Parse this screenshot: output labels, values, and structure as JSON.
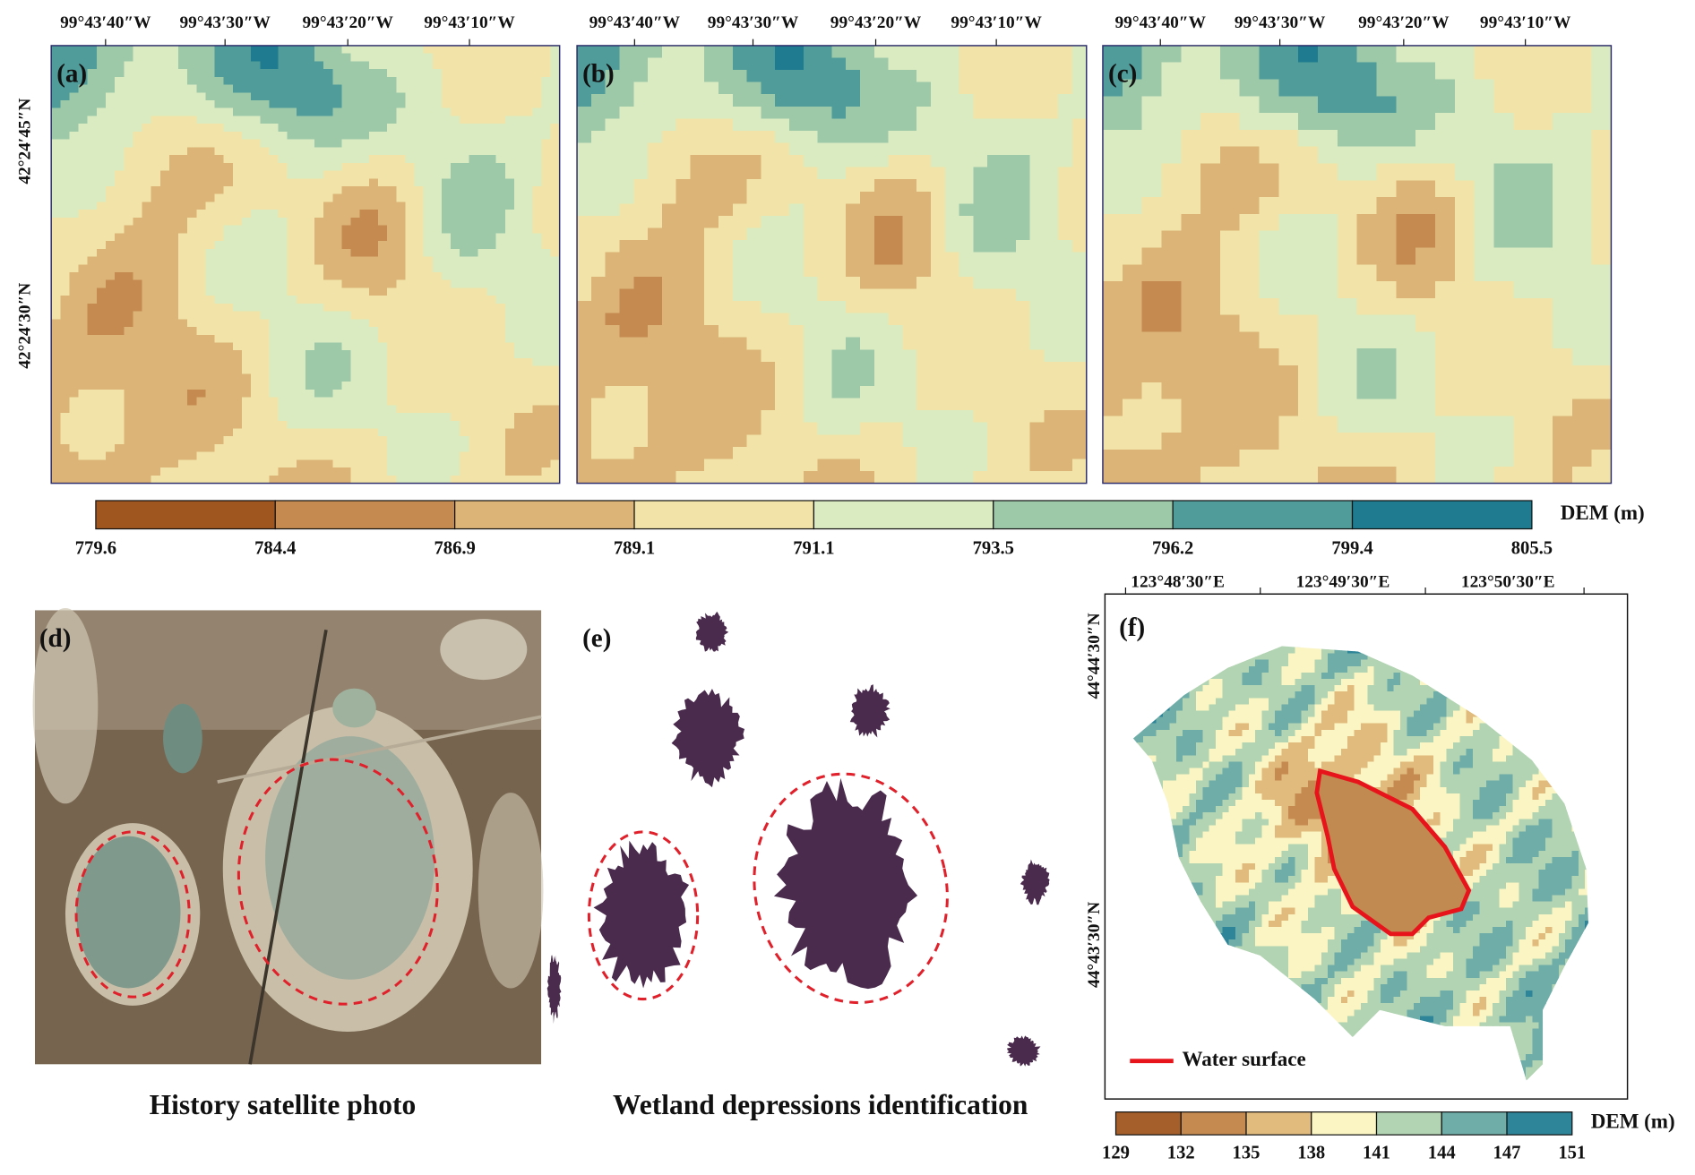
{
  "panels": [
    {
      "label": "(a)"
    },
    {
      "label": "(b)"
    },
    {
      "label": "(c)"
    },
    {
      "label": "(d)",
      "caption": "History satellite photo"
    },
    {
      "label": "(e)",
      "caption": "Wetland depressions identification"
    },
    {
      "label": "(f)",
      "legend": "Water surface"
    }
  ],
  "top_maps": {
    "lon_labels": [
      "99°43′40″W",
      "99°43′30″W",
      "99°43′20″W",
      "99°43′10″W"
    ],
    "lat_labels": [
      "42°24′45″N",
      "42°24′30″N"
    ],
    "colorbar": {
      "title": "DEM (m)",
      "ticks": [
        "779.6",
        "784.4",
        "786.9",
        "789.1",
        "791.1",
        "793.5",
        "796.2",
        "799.4",
        "805.5"
      ],
      "colors": [
        "#a0561f",
        "#c58a4f",
        "#dcb477",
        "#f2e4a8",
        "#dbebc1",
        "#9ec9a9",
        "#4f9c9a",
        "#1f7b8f"
      ]
    }
  },
  "panel_f": {
    "lon_labels": [
      "123°48′30″E",
      "123°49′30″E",
      "123°50′30″E"
    ],
    "lat_labels": [
      "44°44′30″N",
      "44°43′30″N"
    ],
    "colorbar": {
      "title": "DEM (m)",
      "ticks": [
        "129",
        "132",
        "135",
        "138",
        "141",
        "144",
        "147",
        "151"
      ],
      "colors": [
        "#a45f2a",
        "#c58a50",
        "#e1bb7d",
        "#fbf5c3",
        "#b2d4b2",
        "#6fada8",
        "#2e8599"
      ]
    }
  }
}
